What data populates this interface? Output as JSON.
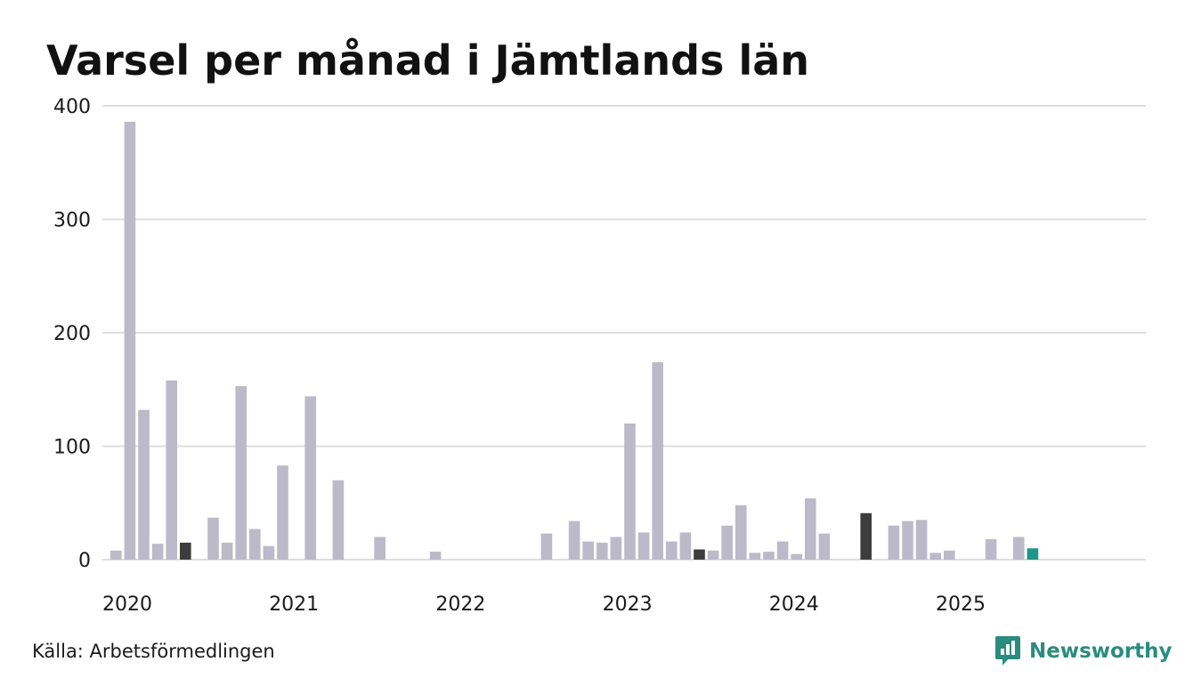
{
  "title": "Varsel per månad i Jämtlands län",
  "source": "Källa: Arbetsförmedlingen",
  "brand": {
    "name": "Newsworthy",
    "icon": "newsworthy-logo-icon",
    "color": "#2a8c7e"
  },
  "colors": {
    "normal": "#bcbac9",
    "highlight": "#3d3d3d",
    "current": "#1f968b",
    "grid": "#dedede"
  },
  "chart_data": {
    "type": "bar",
    "title": "Varsel per månad i Jämtlands län",
    "xlabel": "",
    "ylabel": "",
    "ylim": [
      0,
      400
    ],
    "yticks": [
      "0",
      "100",
      "200",
      "300",
      "400"
    ],
    "xticks": [
      "2020",
      "2021",
      "2022",
      "2023",
      "2024",
      "2025"
    ],
    "grid": true,
    "legend": "none",
    "x": [
      "2020-01",
      "2020-02",
      "2020-03",
      "2020-04",
      "2020-05",
      "2020-06",
      "2020-07",
      "2020-08",
      "2020-09",
      "2020-10",
      "2020-11",
      "2020-12",
      "2021-01",
      "2021-02",
      "2021-03",
      "2021-04",
      "2021-05",
      "2021-06",
      "2021-07",
      "2021-08",
      "2021-09",
      "2021-10",
      "2021-11",
      "2021-12",
      "2022-01",
      "2022-02",
      "2022-03",
      "2022-04",
      "2022-05",
      "2022-06",
      "2022-07",
      "2022-08",
      "2022-09",
      "2022-10",
      "2022-11",
      "2022-12",
      "2023-01",
      "2023-02",
      "2023-03",
      "2023-04",
      "2023-05",
      "2023-06",
      "2023-07",
      "2023-08",
      "2023-09",
      "2023-10",
      "2023-11",
      "2023-12",
      "2024-01",
      "2024-02",
      "2024-03",
      "2024-04",
      "2024-05",
      "2024-06",
      "2024-07",
      "2024-08",
      "2024-09",
      "2024-10",
      "2024-11",
      "2024-12",
      "2025-01",
      "2025-02",
      "2025-03",
      "2025-04",
      "2025-05",
      "2025-06",
      "2025-07",
      "2025-08",
      "2025-09",
      "2025-10",
      "2025-11",
      "2025-12"
    ],
    "values": [
      8,
      386,
      132,
      14,
      158,
      15,
      0,
      37,
      15,
      153,
      27,
      12,
      83,
      0,
      144,
      0,
      70,
      0,
      0,
      20,
      0,
      0,
      0,
      7,
      0,
      0,
      0,
      0,
      0,
      0,
      0,
      23,
      0,
      34,
      16,
      15,
      20,
      120,
      24,
      174,
      16,
      24,
      9,
      8,
      30,
      48,
      6,
      7,
      16,
      5,
      54,
      23,
      0,
      0,
      41,
      0,
      30,
      34,
      35,
      6,
      8,
      0,
      0,
      18,
      0,
      20,
      10,
      0,
      0,
      0,
      0,
      0
    ],
    "highlight_months": [
      "2020-06",
      "2023-07",
      "2024-07"
    ],
    "current_month": "2025-07"
  }
}
